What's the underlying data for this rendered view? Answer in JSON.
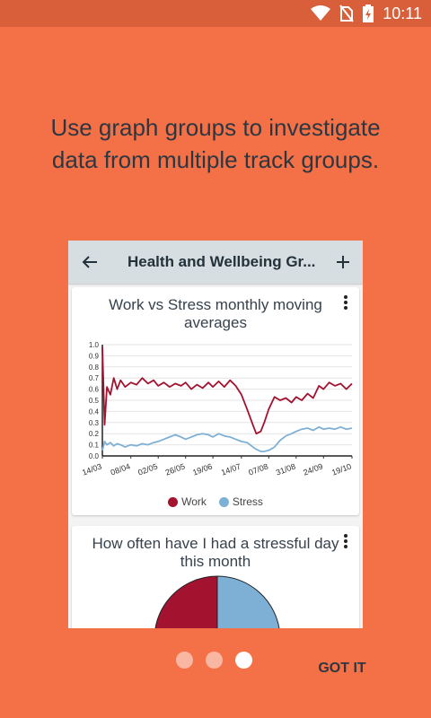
{
  "status_bar": {
    "time": "10:11",
    "icons": [
      "wifi-icon",
      "no-sim-icon",
      "battery-charging-icon"
    ]
  },
  "onboarding": {
    "headline": "Use graph groups to investigate data from multiple track groups.",
    "page_indicator": {
      "total": 3,
      "current": 3
    },
    "got_it_label": "GOT IT"
  },
  "app": {
    "title": "Health and Wellbeing Gr...",
    "back_icon": "arrow-left-icon",
    "add_icon": "plus-icon"
  },
  "cards": [
    {
      "title_line1": "Work vs Stress monthly moving",
      "title_line2": "averages"
    },
    {
      "title_line1": "How often have I had a stressful day",
      "title_line2": "this month"
    }
  ],
  "colors": {
    "background": "#F47046",
    "work": "#A3122F",
    "stress": "#7EB0D5",
    "dot_inactive": "#F9B6A2",
    "dot_active": "#FFFFFF"
  },
  "chart_data": [
    {
      "type": "line",
      "title": "Work vs Stress monthly moving averages",
      "x_tick_labels": [
        "14/03",
        "08/04",
        "02/05",
        "26/05",
        "19/06",
        "14/07",
        "07/08",
        "31/08",
        "24/09",
        "19/10"
      ],
      "y_tick_labels": [
        "0.0",
        "0.1",
        "0.2",
        "0.3",
        "0.4",
        "0.5",
        "0.6",
        "0.7",
        "0.8",
        "0.9",
        "1.0"
      ],
      "ylim": [
        0,
        1
      ],
      "legend_placement": "bottom",
      "series": [
        {
          "name": "Work",
          "color": "#A3122F",
          "points": [
            [
              "14/03",
              0.98
            ],
            [
              "16/03",
              0.28
            ],
            [
              "18/03",
              0.62
            ],
            [
              "21/03",
              0.55
            ],
            [
              "24/03",
              0.7
            ],
            [
              "27/03",
              0.6
            ],
            [
              "30/03",
              0.68
            ],
            [
              "03/04",
              0.62
            ],
            [
              "08/04",
              0.66
            ],
            [
              "13/04",
              0.64
            ],
            [
              "18/04",
              0.7
            ],
            [
              "23/04",
              0.65
            ],
            [
              "28/04",
              0.68
            ],
            [
              "02/05",
              0.63
            ],
            [
              "07/05",
              0.66
            ],
            [
              "12/05",
              0.62
            ],
            [
              "17/05",
              0.65
            ],
            [
              "22/05",
              0.63
            ],
            [
              "26/05",
              0.66
            ],
            [
              "31/05",
              0.6
            ],
            [
              "05/06",
              0.64
            ],
            [
              "10/06",
              0.61
            ],
            [
              "15/06",
              0.66
            ],
            [
              "19/06",
              0.62
            ],
            [
              "24/06",
              0.67
            ],
            [
              "29/06",
              0.62
            ],
            [
              "04/07",
              0.68
            ],
            [
              "09/07",
              0.63
            ],
            [
              "14/07",
              0.55
            ],
            [
              "19/07",
              0.42
            ],
            [
              "24/07",
              0.28
            ],
            [
              "27/07",
              0.2
            ],
            [
              "31/07",
              0.22
            ],
            [
              "03/08",
              0.3
            ],
            [
              "07/08",
              0.42
            ],
            [
              "12/08",
              0.53
            ],
            [
              "17/08",
              0.5
            ],
            [
              "22/08",
              0.52
            ],
            [
              "27/08",
              0.48
            ],
            [
              "31/08",
              0.53
            ],
            [
              "05/09",
              0.5
            ],
            [
              "10/09",
              0.56
            ],
            [
              "15/09",
              0.52
            ],
            [
              "20/09",
              0.63
            ],
            [
              "24/09",
              0.6
            ],
            [
              "29/09",
              0.66
            ],
            [
              "04/10",
              0.63
            ],
            [
              "09/10",
              0.65
            ],
            [
              "14/10",
              0.6
            ],
            [
              "19/10",
              0.65
            ]
          ]
        },
        {
          "name": "Stress",
          "color": "#7EB0D5",
          "points": [
            [
              "14/03",
              0.05
            ],
            [
              "16/03",
              0.13
            ],
            [
              "18/03",
              0.1
            ],
            [
              "21/03",
              0.12
            ],
            [
              "24/03",
              0.09
            ],
            [
              "27/03",
              0.11
            ],
            [
              "30/03",
              0.1
            ],
            [
              "03/04",
              0.08
            ],
            [
              "08/04",
              0.1
            ],
            [
              "13/04",
              0.09
            ],
            [
              "18/04",
              0.11
            ],
            [
              "23/04",
              0.1
            ],
            [
              "28/04",
              0.12
            ],
            [
              "02/05",
              0.13
            ],
            [
              "07/05",
              0.15
            ],
            [
              "12/05",
              0.17
            ],
            [
              "17/05",
              0.19
            ],
            [
              "22/05",
              0.17
            ],
            [
              "26/05",
              0.15
            ],
            [
              "31/05",
              0.17
            ],
            [
              "05/06",
              0.19
            ],
            [
              "10/06",
              0.2
            ],
            [
              "15/06",
              0.19
            ],
            [
              "19/06",
              0.17
            ],
            [
              "24/06",
              0.2
            ],
            [
              "29/06",
              0.18
            ],
            [
              "04/07",
              0.17
            ],
            [
              "09/07",
              0.15
            ],
            [
              "14/07",
              0.13
            ],
            [
              "19/07",
              0.12
            ],
            [
              "24/07",
              0.08
            ],
            [
              "27/07",
              0.06
            ],
            [
              "31/07",
              0.04
            ],
            [
              "03/08",
              0.04
            ],
            [
              "07/08",
              0.05
            ],
            [
              "12/08",
              0.08
            ],
            [
              "17/08",
              0.14
            ],
            [
              "22/08",
              0.18
            ],
            [
              "27/08",
              0.2
            ],
            [
              "31/08",
              0.22
            ],
            [
              "05/09",
              0.24
            ],
            [
              "10/09",
              0.25
            ],
            [
              "15/09",
              0.23
            ],
            [
              "20/09",
              0.26
            ],
            [
              "24/09",
              0.24
            ],
            [
              "29/09",
              0.25
            ],
            [
              "04/10",
              0.24
            ],
            [
              "09/10",
              0.26
            ],
            [
              "14/10",
              0.24
            ],
            [
              "19/10",
              0.25
            ]
          ]
        }
      ]
    },
    {
      "type": "pie",
      "title": "How often have I had a stressful day this month",
      "slices": [
        {
          "color": "#A3122F",
          "value": 0.3
        },
        {
          "color": "#7EB0D5",
          "value": 0.7
        }
      ]
    }
  ]
}
